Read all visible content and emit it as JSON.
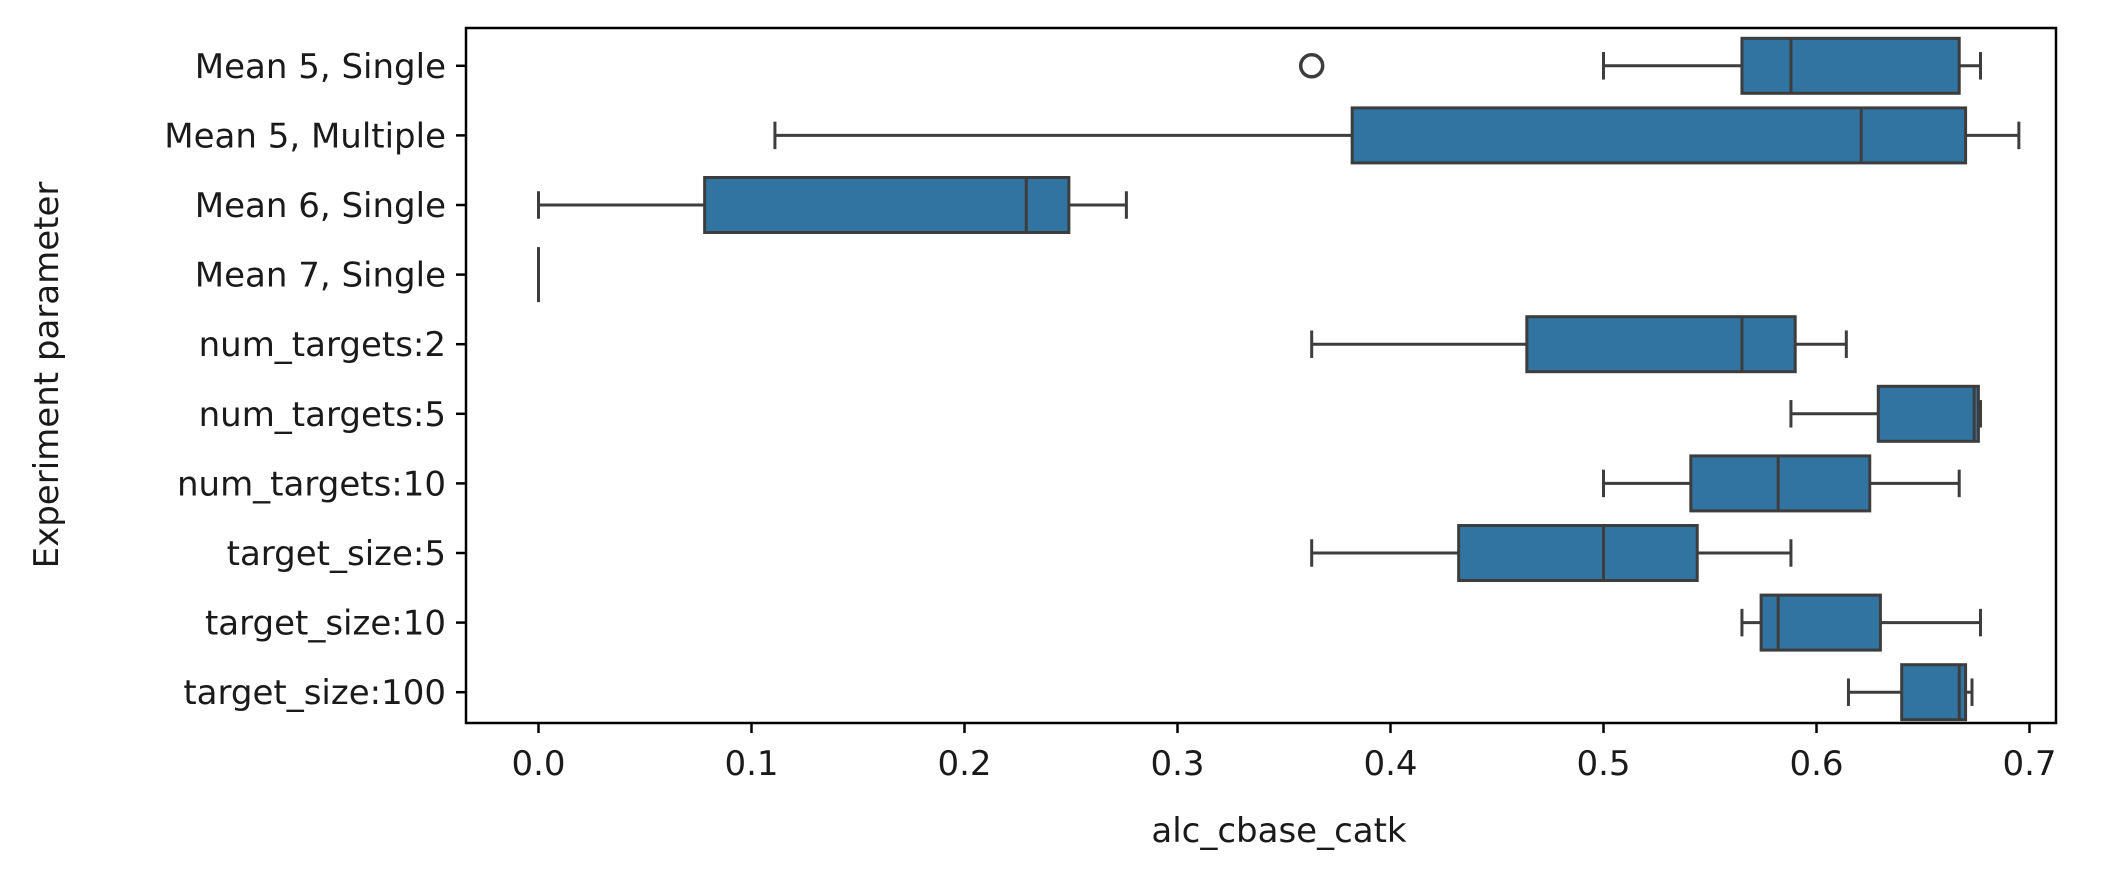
{
  "chart_data": {
    "type": "boxplot",
    "orientation": "horizontal",
    "title": "",
    "xlabel": "alc_cbase_catk",
    "ylabel": "Experiment parameter",
    "xlim": [
      -0.035,
      0.73
    ],
    "x_ticks": [
      0.0,
      0.1,
      0.2,
      0.3,
      0.4,
      0.5,
      0.6,
      0.7
    ],
    "x_tick_labels": [
      "0.0",
      "0.1",
      "0.2",
      "0.3",
      "0.4",
      "0.5",
      "0.6",
      "0.7"
    ],
    "grid": false,
    "legend": false,
    "box_color": "#3274a1",
    "line_color": "#3d3d3d",
    "categories": [
      "Mean 5, Single",
      "Mean 5, Multiple",
      "Mean 6, Single",
      "Mean 7, Single",
      "num_targets:2",
      "num_targets:5",
      "num_targets:10",
      "target_size:5",
      "target_size:10",
      "target_size:100"
    ],
    "boxes": [
      {
        "min": 0.5,
        "q1": 0.565,
        "median": 0.588,
        "q3": 0.667,
        "max": 0.677,
        "outliers": [
          0.363
        ]
      },
      {
        "min": 0.111,
        "q1": 0.382,
        "median": 0.621,
        "q3": 0.67,
        "max": 0.695,
        "outliers": []
      },
      {
        "min": 0.0,
        "q1": 0.078,
        "median": 0.229,
        "q3": 0.249,
        "max": 0.276,
        "outliers": []
      },
      {
        "min": 0.0,
        "q1": 0.0,
        "median": 0.0,
        "q3": 0.0,
        "max": 0.0,
        "outliers": []
      },
      {
        "min": 0.363,
        "q1": 0.464,
        "median": 0.565,
        "q3": 0.59,
        "max": 0.614,
        "outliers": []
      },
      {
        "min": 0.588,
        "q1": 0.629,
        "median": 0.674,
        "q3": 0.676,
        "max": 0.677,
        "outliers": []
      },
      {
        "min": 0.5,
        "q1": 0.541,
        "median": 0.582,
        "q3": 0.625,
        "max": 0.667,
        "outliers": []
      },
      {
        "min": 0.363,
        "q1": 0.432,
        "median": 0.5,
        "q3": 0.544,
        "max": 0.588,
        "outliers": []
      },
      {
        "min": 0.565,
        "q1": 0.574,
        "median": 0.582,
        "q3": 0.63,
        "max": 0.677,
        "outliers": []
      },
      {
        "min": 0.615,
        "q1": 0.64,
        "median": 0.667,
        "q3": 0.67,
        "max": 0.673,
        "outliers": []
      }
    ]
  }
}
